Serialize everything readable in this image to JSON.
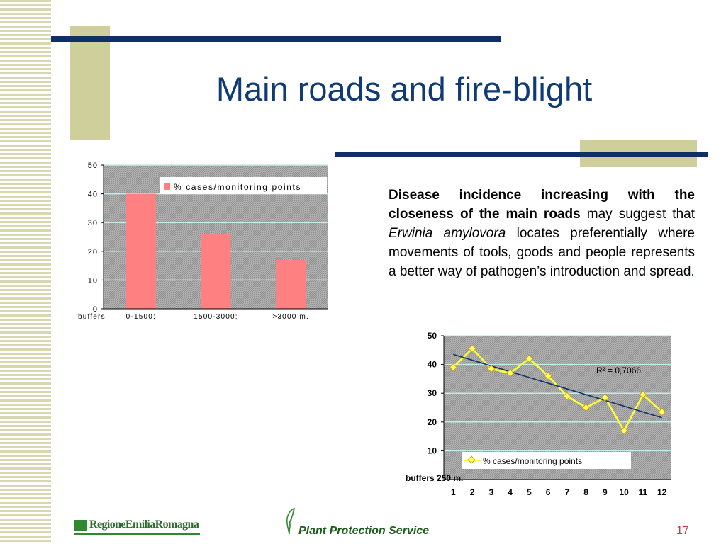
{
  "slide": {
    "title": "Main roads and fire-blight",
    "body": {
      "bold_lead": "Disease incidence increasing with the closeness of the main roads",
      "part1": " may suggest that ",
      "species": "Erwinia amylovora",
      "part2": " locates preferentially where movements of tools, goods and people represents a better way of pathogen’s introduction and spread",
      "end": "."
    },
    "footer": {
      "logo_text": "RegioneEmiliaRomagna",
      "service": "Plant Protection Service",
      "page_number": "17"
    }
  },
  "colors": {
    "title": "#0f3a73",
    "rule": "#0f2f66",
    "accent_block": "#cfcf9c",
    "bar_fill": "#ff8080",
    "line": "#ffff33",
    "trend": "#0f2f66"
  },
  "chart_data": [
    {
      "type": "bar",
      "xlabel": "buffers",
      "categories": [
        "0-1500;",
        "1500-3000;",
        ">3000 m."
      ],
      "series": [
        {
          "name": "% cases/monitoring points",
          "values": [
            40,
            26,
            17
          ]
        }
      ],
      "ylim": [
        0,
        50
      ],
      "yticks": [
        0,
        10,
        20,
        30,
        40,
        50
      ],
      "grid": true,
      "legend": "top-right"
    },
    {
      "type": "line",
      "xlabel": "buffers 250 m.",
      "x": [
        1,
        2,
        3,
        4,
        5,
        6,
        7,
        8,
        9,
        10,
        11,
        12
      ],
      "series": [
        {
          "name": "% cases/monitoring points",
          "values": [
            39,
            45.5,
            38.5,
            37,
            42,
            36,
            29,
            25,
            28.5,
            17,
            29.5,
            23.5
          ]
        }
      ],
      "trendline": {
        "start": 43.5,
        "end": 21.5
      },
      "annotation": "R² = 0,7066",
      "ylim": [
        0,
        50
      ],
      "yticks": [
        10,
        20,
        30,
        40,
        50
      ],
      "grid": true,
      "legend": "bottom"
    }
  ]
}
